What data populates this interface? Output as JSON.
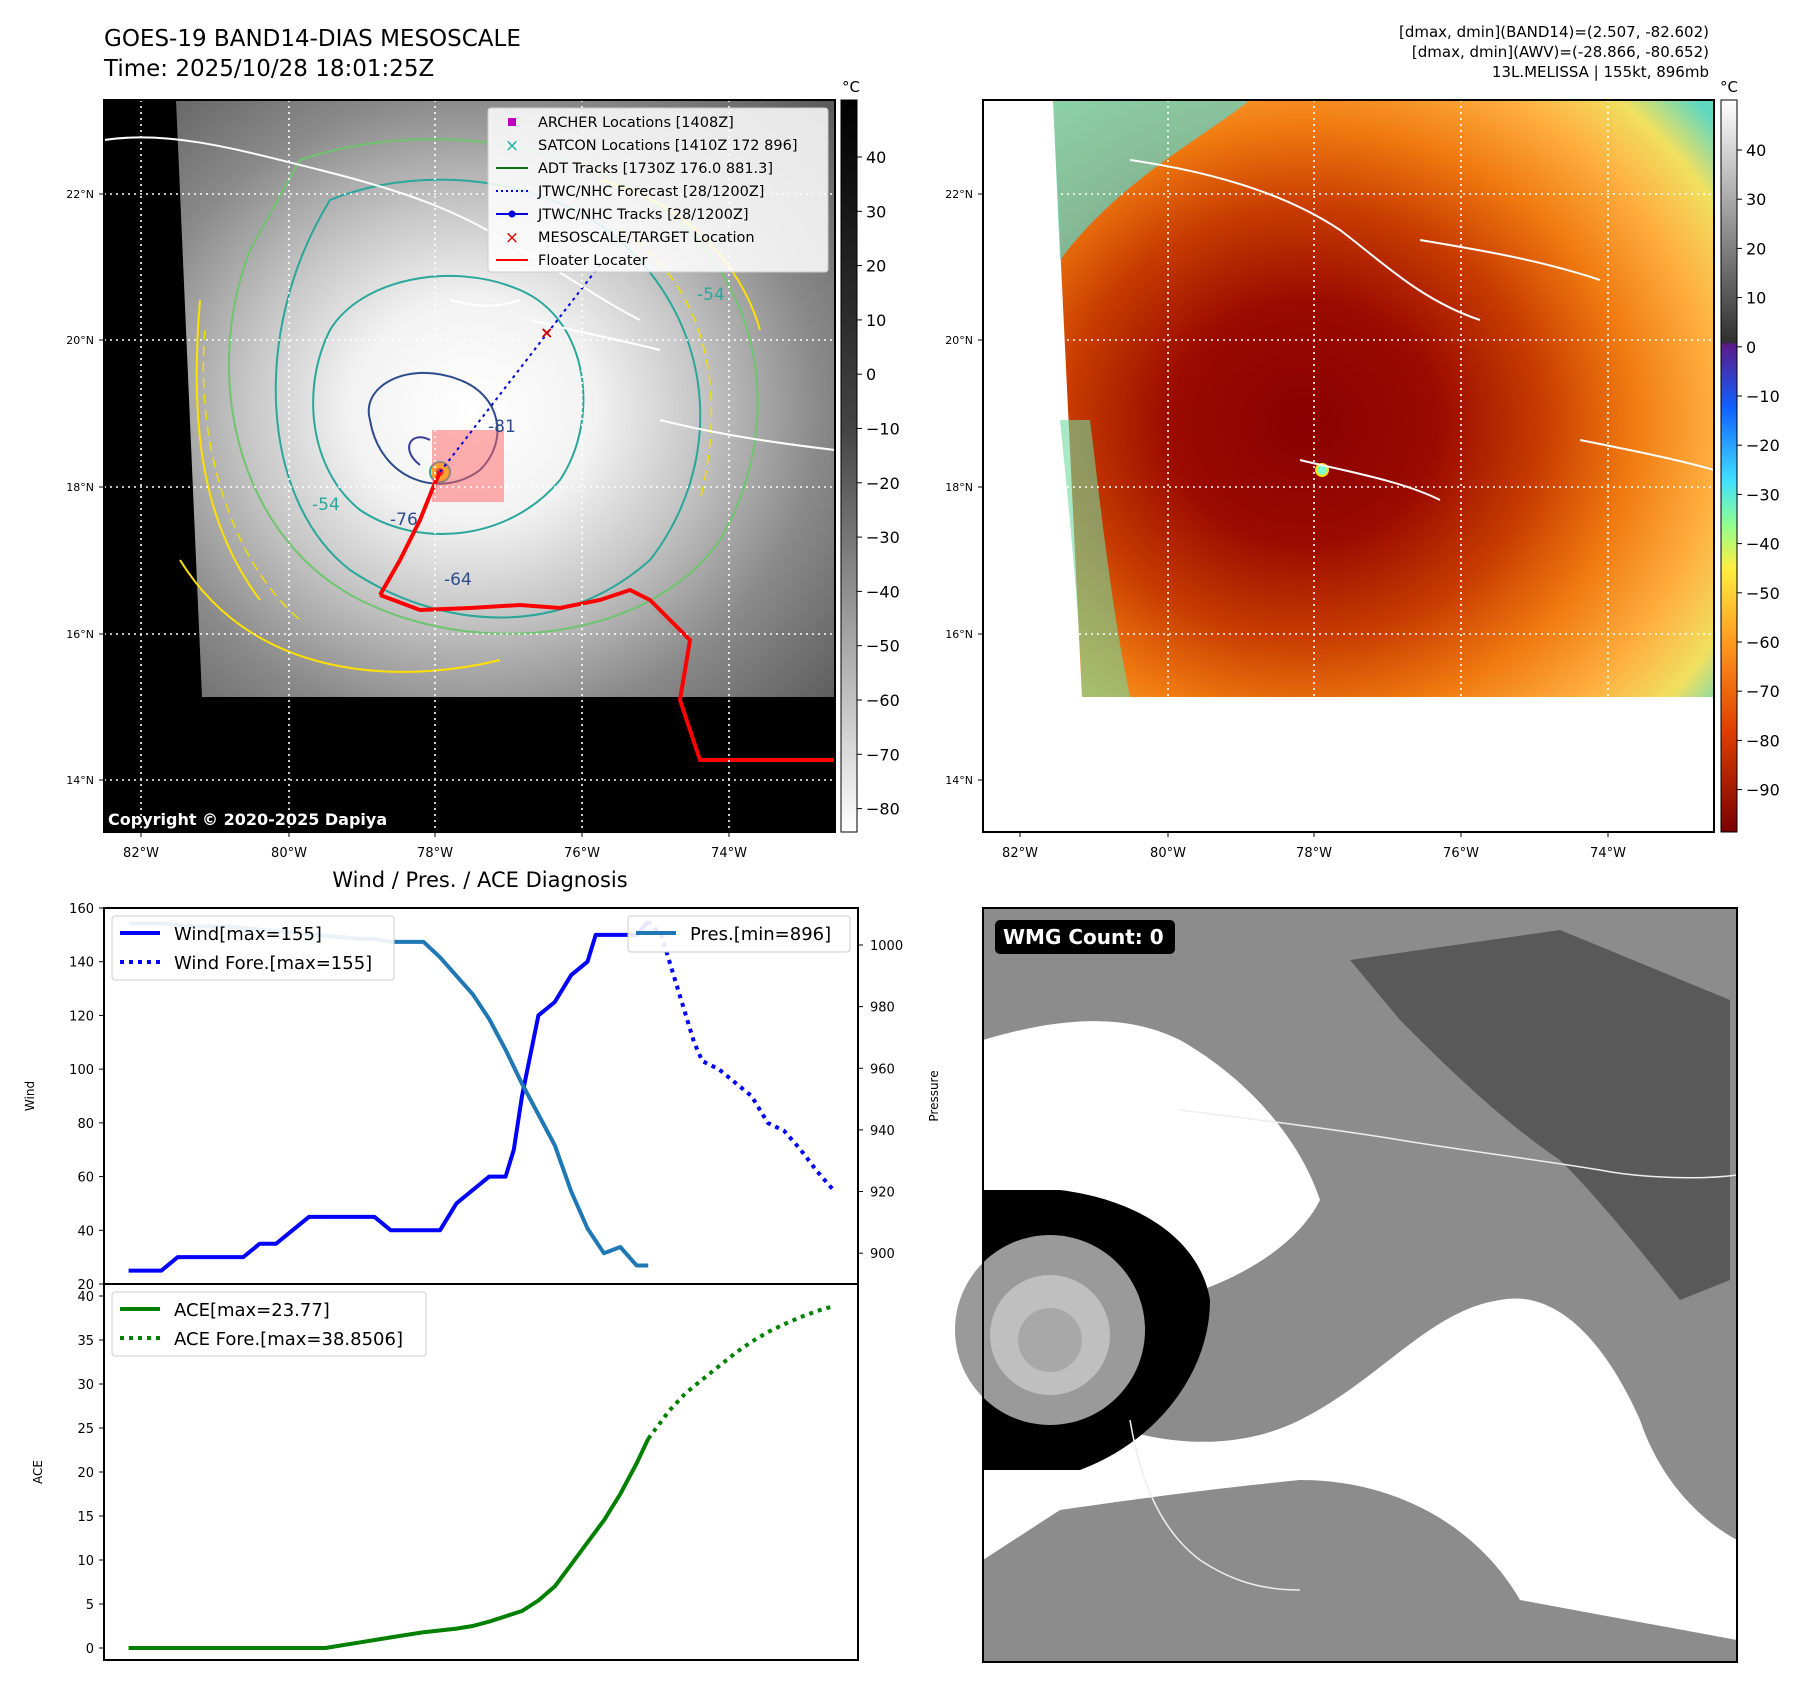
{
  "header": {
    "title": "GOES-19 BAND14-DIAS MESOSCALE",
    "time": "Time: 2025/10/28 18:01:25Z",
    "stats_line1": "[dmax, dmin](BAND14)=(2.507, -82.602)",
    "stats_line2": "[dmax, dmin](AWV)=(-28.866, -80.652)",
    "storm": "13L.MELISSA | 155kt, 896mb"
  },
  "copyright": "Copyright © 2020-2025 Dapiya",
  "units": "°C",
  "map": {
    "lon_ticks": [
      "82°W",
      "80°W",
      "78°W",
      "76°W",
      "74°W"
    ],
    "lat_ticks": [
      "22°N",
      "20°N",
      "18°N",
      "16°N",
      "14°N"
    ],
    "legend": [
      {
        "label": "ARCHER Locations [1408Z]",
        "color": "#c000c0",
        "marker": "square"
      },
      {
        "label": "SATCON Locations [1410Z 172 896]",
        "color": "#17b0a8",
        "marker": "x"
      },
      {
        "label": "ADT Tracks [1730Z 176.0 881.3]",
        "color": "#107010",
        "marker": "line"
      },
      {
        "label": "JTWC/NHC Forecast [28/1200Z]",
        "color": "#0000e0",
        "marker": "dotted"
      },
      {
        "label": "JTWC/NHC Tracks [28/1200Z]",
        "color": "#0000e0",
        "marker": "dotline"
      },
      {
        "label": "MESOSCALE/TARGET Location",
        "color": "#e00000",
        "marker": "x"
      },
      {
        "label": "Floater Locater",
        "color": "#ff0000",
        "marker": "line"
      }
    ],
    "contour_labels": [
      "-54",
      "-54",
      "-64",
      "-76",
      "-81"
    ],
    "gray_colorbar_ticks": [
      "40",
      "30",
      "20",
      "10",
      "0",
      "−10",
      "−20",
      "−30",
      "−40",
      "−50",
      "−60",
      "−70",
      "−80"
    ],
    "color_colorbar_ticks": [
      "40",
      "30",
      "20",
      "10",
      "0",
      "−10",
      "−20",
      "−30",
      "−40",
      "−50",
      "−60",
      "−70",
      "−80",
      "−90"
    ]
  },
  "wmg": {
    "label": "WMG Count: 0"
  },
  "chart_data": [
    {
      "type": "line",
      "title": "Wind / Pres. / ACE Diagnosis",
      "ylabel": "Wind",
      "ylim": [
        20,
        160
      ],
      "yticks": [
        20,
        40,
        60,
        80,
        100,
        120,
        140,
        160
      ],
      "y2label": "Pressure",
      "y2lim": [
        890,
        1012
      ],
      "y2ticks": [
        900,
        920,
        940,
        960,
        980,
        1000
      ],
      "series": [
        {
          "name": "Wind[max=155]",
          "color": "#0000ff",
          "style": "solid",
          "x": [
            0,
            2,
            3,
            4,
            6,
            7,
            8,
            9,
            11,
            12,
            13,
            14,
            15,
            16,
            17,
            18,
            19,
            20,
            21,
            22,
            23,
            23.5,
            24,
            25,
            26,
            27,
            28,
            28.5,
            29,
            30,
            31,
            31.7
          ],
          "values": [
            25,
            25,
            30,
            30,
            30,
            30,
            35,
            35,
            45,
            45,
            45,
            45,
            45,
            40,
            40,
            40,
            40,
            50,
            55,
            60,
            60,
            70,
            90,
            120,
            125,
            135,
            140,
            150,
            150,
            150,
            150,
            155
          ]
        },
        {
          "name": "Wind Fore.[max=155]",
          "color": "#0000ff",
          "style": "dotted",
          "x": [
            31.7,
            32.5,
            33,
            33.5,
            34,
            34.5,
            35,
            36,
            37,
            38,
            39,
            40,
            41,
            42,
            43
          ],
          "values": [
            155,
            150,
            140,
            130,
            120,
            110,
            103,
            100,
            95,
            90,
            80,
            77,
            70,
            62,
            55
          ]
        },
        {
          "name": "Pres.[min=896]",
          "color": "#1f77b4",
          "style": "solid",
          "axis": "y2",
          "x": [
            0,
            2,
            4,
            6,
            8,
            10,
            12,
            14,
            15,
            16,
            17,
            18,
            19,
            20,
            21,
            22,
            23,
            24,
            25,
            26,
            27,
            28,
            29,
            30,
            31,
            31.7
          ],
          "values": [
            1007,
            1007,
            1006,
            1006,
            1005,
            1004,
            1003,
            1002,
            1002,
            1001,
            1001,
            1001,
            996,
            990,
            984,
            976,
            966,
            955,
            945,
            935,
            920,
            908,
            900,
            902,
            896,
            896
          ]
        }
      ]
    },
    {
      "type": "line",
      "ylabel": "ACE",
      "ylim": [
        0,
        40
      ],
      "yticks": [
        0,
        5,
        10,
        15,
        20,
        25,
        30,
        35,
        40
      ],
      "series": [
        {
          "name": "ACE[max=23.77]",
          "color": "#008000",
          "style": "solid",
          "x": [
            0,
            4,
            8,
            10,
            12,
            14,
            16,
            18,
            20,
            21,
            22,
            23,
            24,
            25,
            26,
            27,
            28,
            29,
            30,
            31,
            31.7
          ],
          "values": [
            0,
            0,
            0,
            0,
            0,
            0.6,
            1.2,
            1.8,
            2.2,
            2.5,
            3.0,
            3.6,
            4.2,
            5.4,
            7.0,
            9.5,
            12.0,
            14.5,
            17.5,
            21.0,
            23.77
          ]
        },
        {
          "name": "ACE Fore.[max=38.8506]",
          "color": "#008000",
          "style": "dotted",
          "x": [
            31.7,
            33,
            34,
            35,
            36,
            37,
            38,
            39,
            40,
            41,
            42,
            43
          ],
          "values": [
            23.77,
            27,
            29,
            30.5,
            32,
            33.5,
            34.8,
            35.9,
            36.8,
            37.6,
            38.3,
            38.85
          ]
        }
      ]
    }
  ]
}
